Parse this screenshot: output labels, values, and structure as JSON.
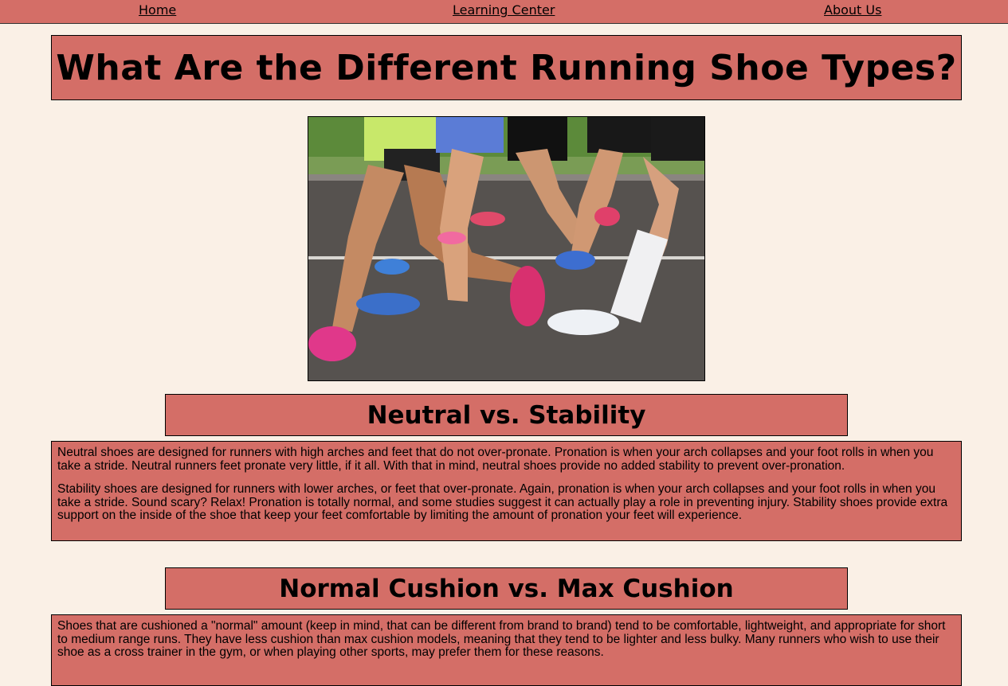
{
  "nav": {
    "home": "Home",
    "learning_center": "Learning Center",
    "about_us": "About Us"
  },
  "page": {
    "title": "What Are the Different Running Shoe Types?"
  },
  "sections": [
    {
      "heading": "Neutral vs. Stability",
      "paragraphs": [
        "Neutral shoes are designed for runners with high arches and feet that do not over-pronate. Pronation is when your arch collapses and your foot rolls in when you take a stride. Neutral runners feet pronate very little, if it all. With that in mind, neutral shoes provide no added stability to prevent over-pronation.",
        "Stability shoes are designed for runners with lower arches, or feet that over-pronate. Again, pronation is when your arch collapses and your foot rolls in when you take a stride. Sound scary? Relax! Pronation is totally normal, and some studies suggest it can actually play a role in preventing injury. Stability shoes provide extra support on the inside of the shoe that keep your feet comfortable by limiting the amount of pronation your feet will experience."
      ]
    },
    {
      "heading": "Normal Cushion vs. Max Cushion",
      "paragraphs": [
        "Shoes that are cushioned a \"normal\" amount (keep in mind, that can be different from brand to brand) tend to be comfortable, lightweight, and appropriate for short to medium range runs. They have less cushion than max cushion models, meaning that they tend to be lighter and less bulky. Many runners who wish to use their shoe as a cross trainer in the gym, or when playing other sports, may prefer them for these reasons."
      ]
    }
  ],
  "colors": {
    "background": "#faf0e6",
    "accent": "#d46e67"
  }
}
